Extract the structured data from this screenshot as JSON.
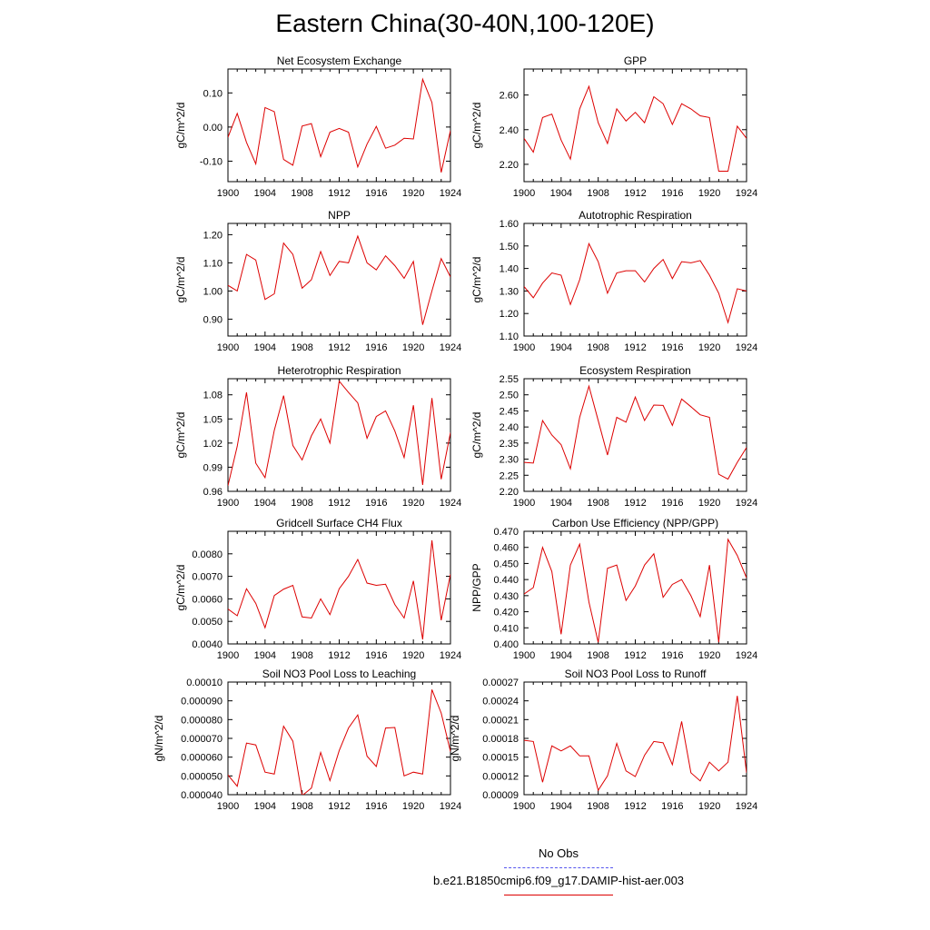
{
  "title": "Eastern China(30-40N,100-120E)",
  "legend": {
    "obs_label": "No Obs",
    "obs_color": "#5555ee",
    "model_label": "b.e21.B1850cmip6.f09_g17.DAMIP-hist-aer.003",
    "model_color": "#dd0000"
  },
  "chart_data": [
    {
      "type": "line",
      "title": "Net Ecosystem Exchange",
      "ylabel": "gC/m^2/d",
      "xlim": [
        1900,
        1924
      ],
      "ylim": [
        -0.16,
        0.17
      ],
      "yticks": [
        -0.1,
        0.0,
        0.1
      ],
      "yticklabels": [
        "-0.10",
        "0.00",
        "0.10"
      ],
      "xticks": [
        1900,
        1904,
        1908,
        1912,
        1916,
        1920,
        1924
      ],
      "xticklabels": [
        "1900",
        "1904",
        "1908",
        "1912",
        "1916",
        "1920",
        "1924"
      ],
      "series": [
        {
          "x": [
            1900,
            1901,
            1902,
            1903,
            1904,
            1905,
            1906,
            1907,
            1908,
            1909,
            1910,
            1911,
            1912,
            1913,
            1914,
            1915,
            1916,
            1917,
            1918,
            1919,
            1920,
            1921,
            1922,
            1923,
            1924
          ],
          "values": [
            -0.03,
            0.04,
            -0.045,
            -0.108,
            0.057,
            0.045,
            -0.095,
            -0.112,
            0.003,
            0.01,
            -0.087,
            -0.015,
            -0.004,
            -0.015,
            -0.117,
            -0.05,
            0.002,
            -0.062,
            -0.053,
            -0.033,
            -0.035,
            0.14,
            0.072,
            -0.133,
            -0.01
          ]
        }
      ]
    },
    {
      "type": "line",
      "title": "GPP",
      "ylabel": "gC/m^2/d",
      "xlim": [
        1900,
        1924
      ],
      "ylim": [
        2.1,
        2.75
      ],
      "yticks": [
        2.2,
        2.4,
        2.6
      ],
      "yticklabels": [
        "2.20",
        "2.40",
        "2.60"
      ],
      "xticks": [
        1900,
        1904,
        1908,
        1912,
        1916,
        1920,
        1924
      ],
      "xticklabels": [
        "1900",
        "1904",
        "1908",
        "1912",
        "1916",
        "1920",
        "1924"
      ],
      "series": [
        {
          "x": [
            1900,
            1901,
            1902,
            1903,
            1904,
            1905,
            1906,
            1907,
            1908,
            1909,
            1910,
            1911,
            1912,
            1913,
            1914,
            1915,
            1916,
            1917,
            1918,
            1919,
            1920,
            1921,
            1922,
            1923,
            1924
          ],
          "values": [
            2.35,
            2.27,
            2.47,
            2.49,
            2.34,
            2.23,
            2.52,
            2.65,
            2.44,
            2.32,
            2.52,
            2.45,
            2.5,
            2.44,
            2.59,
            2.55,
            2.43,
            2.55,
            2.52,
            2.48,
            2.47,
            2.16,
            2.16,
            2.42,
            2.35
          ]
        }
      ]
    },
    {
      "type": "line",
      "title": "NPP",
      "ylabel": "gC/m^2/d",
      "xlim": [
        1900,
        1924
      ],
      "ylim": [
        0.84,
        1.24
      ],
      "yticks": [
        0.9,
        1.0,
        1.1,
        1.2
      ],
      "yticklabels": [
        "0.90",
        "1.00",
        "1.10",
        "1.20"
      ],
      "xticks": [
        1900,
        1904,
        1908,
        1912,
        1916,
        1920,
        1924
      ],
      "xticklabels": [
        "1900",
        "1904",
        "1908",
        "1912",
        "1916",
        "1920",
        "1924"
      ],
      "series": [
        {
          "x": [
            1900,
            1901,
            1902,
            1903,
            1904,
            1905,
            1906,
            1907,
            1908,
            1909,
            1910,
            1911,
            1912,
            1913,
            1914,
            1915,
            1916,
            1917,
            1918,
            1919,
            1920,
            1921,
            1922,
            1923,
            1924
          ],
          "values": [
            1.02,
            1.0,
            1.13,
            1.11,
            0.97,
            0.99,
            1.17,
            1.13,
            1.01,
            1.04,
            1.14,
            1.055,
            1.105,
            1.1,
            1.195,
            1.1,
            1.075,
            1.125,
            1.09,
            1.045,
            1.105,
            0.88,
            1.0,
            1.115,
            1.05
          ]
        }
      ]
    },
    {
      "type": "line",
      "title": "Autotrophic Respiration",
      "ylabel": "gC/m^2/d",
      "xlim": [
        1900,
        1924
      ],
      "ylim": [
        1.1,
        1.6
      ],
      "yticks": [
        1.1,
        1.2,
        1.3,
        1.4,
        1.5,
        1.6
      ],
      "yticklabels": [
        "1.10",
        "1.20",
        "1.30",
        "1.40",
        "1.50",
        "1.60"
      ],
      "xticks": [
        1900,
        1904,
        1908,
        1912,
        1916,
        1920,
        1924
      ],
      "xticklabels": [
        "1900",
        "1904",
        "1908",
        "1912",
        "1916",
        "1920",
        "1924"
      ],
      "series": [
        {
          "x": [
            1900,
            1901,
            1902,
            1903,
            1904,
            1905,
            1906,
            1907,
            1908,
            1909,
            1910,
            1911,
            1912,
            1913,
            1914,
            1915,
            1916,
            1917,
            1918,
            1919,
            1920,
            1921,
            1922,
            1923,
            1924
          ],
          "values": [
            1.32,
            1.27,
            1.335,
            1.38,
            1.37,
            1.24,
            1.35,
            1.51,
            1.43,
            1.29,
            1.38,
            1.39,
            1.39,
            1.34,
            1.4,
            1.44,
            1.355,
            1.43,
            1.425,
            1.435,
            1.37,
            1.29,
            1.16,
            1.31,
            1.3
          ]
        }
      ]
    },
    {
      "type": "line",
      "title": "Heterotrophic Respiration",
      "ylabel": "gC/m^2/d",
      "xlim": [
        1900,
        1924
      ],
      "ylim": [
        0.96,
        1.1
      ],
      "yticks": [
        0.96,
        0.99,
        1.02,
        1.05,
        1.08
      ],
      "yticklabels": [
        "0.96",
        "0.99",
        "1.02",
        "1.05",
        "1.08"
      ],
      "xticks": [
        1900,
        1904,
        1908,
        1912,
        1916,
        1920,
        1924
      ],
      "xticklabels": [
        "1900",
        "1904",
        "1908",
        "1912",
        "1916",
        "1920",
        "1924"
      ],
      "series": [
        {
          "x": [
            1900,
            1901,
            1902,
            1903,
            1904,
            1905,
            1906,
            1907,
            1908,
            1909,
            1910,
            1911,
            1912,
            1913,
            1914,
            1915,
            1916,
            1917,
            1918,
            1919,
            1920,
            1921,
            1922,
            1923,
            1924
          ],
          "values": [
            0.967,
            1.016,
            1.083,
            0.995,
            0.977,
            1.036,
            1.079,
            1.017,
            0.999,
            1.029,
            1.05,
            1.02,
            1.097,
            1.083,
            1.07,
            1.026,
            1.053,
            1.06,
            1.035,
            1.002,
            1.067,
            0.968,
            1.076,
            0.975,
            1.033
          ]
        }
      ]
    },
    {
      "type": "line",
      "title": "Ecosystem Respiration",
      "ylabel": "gC/m^2/d",
      "xlim": [
        1900,
        1924
      ],
      "ylim": [
        2.2,
        2.55
      ],
      "yticks": [
        2.2,
        2.25,
        2.3,
        2.35,
        2.4,
        2.45,
        2.5,
        2.55
      ],
      "yticklabels": [
        "2.20",
        "2.25",
        "2.30",
        "2.35",
        "2.40",
        "2.45",
        "2.50",
        "2.55"
      ],
      "xticks": [
        1900,
        1904,
        1908,
        1912,
        1916,
        1920,
        1924
      ],
      "xticklabels": [
        "1900",
        "1904",
        "1908",
        "1912",
        "1916",
        "1920",
        "1924"
      ],
      "series": [
        {
          "x": [
            1900,
            1901,
            1902,
            1903,
            1904,
            1905,
            1906,
            1907,
            1908,
            1909,
            1910,
            1911,
            1912,
            1913,
            1914,
            1915,
            1916,
            1917,
            1918,
            1919,
            1920,
            1921,
            1922,
            1923,
            1924
          ],
          "values": [
            2.29,
            2.288,
            2.42,
            2.375,
            2.345,
            2.27,
            2.43,
            2.527,
            2.42,
            2.313,
            2.43,
            2.415,
            2.493,
            2.42,
            2.468,
            2.467,
            2.405,
            2.487,
            2.463,
            2.438,
            2.43,
            2.253,
            2.238,
            2.29,
            2.336
          ]
        }
      ]
    },
    {
      "type": "line",
      "title": "Gridcell Surface CH4 Flux",
      "ylabel": "gC/m^2/d",
      "xlim": [
        1900,
        1924
      ],
      "ylim": [
        0.004,
        0.009
      ],
      "yticks": [
        0.004,
        0.005,
        0.006,
        0.007,
        0.008
      ],
      "yticklabels": [
        "0.0040",
        "0.0050",
        "0.0060",
        "0.0070",
        "0.0080"
      ],
      "xticks": [
        1900,
        1904,
        1908,
        1912,
        1916,
        1920,
        1924
      ],
      "xticklabels": [
        "1900",
        "1904",
        "1908",
        "1912",
        "1916",
        "1920",
        "1924"
      ],
      "series": [
        {
          "x": [
            1900,
            1901,
            1902,
            1903,
            1904,
            1905,
            1906,
            1907,
            1908,
            1909,
            1910,
            1911,
            1912,
            1913,
            1914,
            1915,
            1916,
            1917,
            1918,
            1919,
            1920,
            1921,
            1922,
            1923,
            1924
          ],
          "values": [
            0.00555,
            0.00525,
            0.00645,
            0.0058,
            0.00472,
            0.00615,
            0.00643,
            0.0066,
            0.0052,
            0.00515,
            0.006,
            0.0053,
            0.00645,
            0.007,
            0.00775,
            0.0067,
            0.0066,
            0.00665,
            0.00575,
            0.00515,
            0.0068,
            0.0042,
            0.0086,
            0.00505,
            0.0071
          ]
        }
      ]
    },
    {
      "type": "line",
      "title": "Carbon Use Efficiency (NPP/GPP)",
      "ylabel": "NPP/GPP",
      "xlim": [
        1900,
        1924
      ],
      "ylim": [
        0.4,
        0.47
      ],
      "yticks": [
        0.4,
        0.41,
        0.42,
        0.43,
        0.44,
        0.45,
        0.46,
        0.47
      ],
      "yticklabels": [
        "0.400",
        "0.410",
        "0.420",
        "0.430",
        "0.440",
        "0.450",
        "0.460",
        "0.470"
      ],
      "xticks": [
        1900,
        1904,
        1908,
        1912,
        1916,
        1920,
        1924
      ],
      "xticklabels": [
        "1900",
        "1904",
        "1908",
        "1912",
        "1916",
        "1920",
        "1924"
      ],
      "series": [
        {
          "x": [
            1900,
            1901,
            1902,
            1903,
            1904,
            1905,
            1906,
            1907,
            1908,
            1909,
            1910,
            1911,
            1912,
            1913,
            1914,
            1915,
            1916,
            1917,
            1918,
            1919,
            1920,
            1921,
            1922,
            1923,
            1924
          ],
          "values": [
            0.431,
            0.435,
            0.46,
            0.445,
            0.406,
            0.449,
            0.462,
            0.426,
            0.401,
            0.447,
            0.449,
            0.427,
            0.436,
            0.449,
            0.456,
            0.429,
            0.437,
            0.44,
            0.43,
            0.417,
            0.449,
            0.401,
            0.465,
            0.455,
            0.441
          ]
        }
      ]
    },
    {
      "type": "line",
      "title": "Soil NO3 Pool Loss to Leaching",
      "ylabel": "gN/m^2/d",
      "xlim": [
        1900,
        1924
      ],
      "ylim": [
        4e-05,
        0.0001
      ],
      "yticks": [
        4e-05,
        5e-05,
        6e-05,
        7e-05,
        8e-05,
        9e-05,
        0.0001
      ],
      "yticklabels": [
        "0.000040",
        "0.000050",
        "0.000060",
        "0.000070",
        "0.000080",
        "0.000090",
        "0.00010"
      ],
      "xticks": [
        1900,
        1904,
        1908,
        1912,
        1916,
        1920,
        1924
      ],
      "xticklabels": [
        "1900",
        "1904",
        "1908",
        "1912",
        "1916",
        "1920",
        "1924"
      ],
      "series": [
        {
          "x": [
            1900,
            1901,
            1902,
            1903,
            1904,
            1905,
            1906,
            1907,
            1908,
            1909,
            1910,
            1911,
            1912,
            1913,
            1914,
            1915,
            1916,
            1917,
            1918,
            1919,
            1920,
            1921,
            1922,
            1923,
            1924
          ],
          "values": [
            5.05e-05,
            4.45e-05,
            6.75e-05,
            6.65e-05,
            5.2e-05,
            5.1e-05,
            7.65e-05,
            6.85e-05,
            3.95e-05,
            4.35e-05,
            6.25e-05,
            4.75e-05,
            6.35e-05,
            7.55e-05,
            8.25e-05,
            6.05e-05,
            5.5e-05,
            7.55e-05,
            7.58e-05,
            5e-05,
            5.2e-05,
            5.1e-05,
            9.6e-05,
            8.35e-05,
            6.3e-05
          ]
        }
      ]
    },
    {
      "type": "line",
      "title": "Soil NO3 Pool Loss to Runoff",
      "ylabel": "gN/m^2/d",
      "xlim": [
        1900,
        1924
      ],
      "ylim": [
        9e-05,
        0.00027
      ],
      "yticks": [
        9e-05,
        0.00012,
        0.00015,
        0.00018,
        0.00021,
        0.00024,
        0.00027
      ],
      "yticklabels": [
        "0.00009",
        "0.00012",
        "0.00015",
        "0.00018",
        "0.00021",
        "0.00024",
        "0.00027"
      ],
      "xticks": [
        1900,
        1904,
        1908,
        1912,
        1916,
        1920,
        1924
      ],
      "xticklabels": [
        "1900",
        "1904",
        "1908",
        "1912",
        "1916",
        "1920",
        "1924"
      ],
      "series": [
        {
          "x": [
            1900,
            1901,
            1902,
            1903,
            1904,
            1905,
            1906,
            1907,
            1908,
            1909,
            1910,
            1911,
            1912,
            1913,
            1914,
            1915,
            1916,
            1917,
            1918,
            1919,
            1920,
            1921,
            1922,
            1923,
            1924
          ],
          "values": [
            0.000177,
            0.000175,
            0.00011,
            0.000168,
            0.00016,
            0.000168,
            0.000152,
            0.000152,
            9.7e-05,
            0.00012,
            0.000172,
            0.000128,
            0.000119,
            0.000153,
            0.000175,
            0.000173,
            0.000138,
            0.000207,
            0.000125,
            0.000112,
            0.000142,
            0.000128,
            0.000142,
            0.000248,
            0.000125
          ]
        }
      ]
    }
  ]
}
